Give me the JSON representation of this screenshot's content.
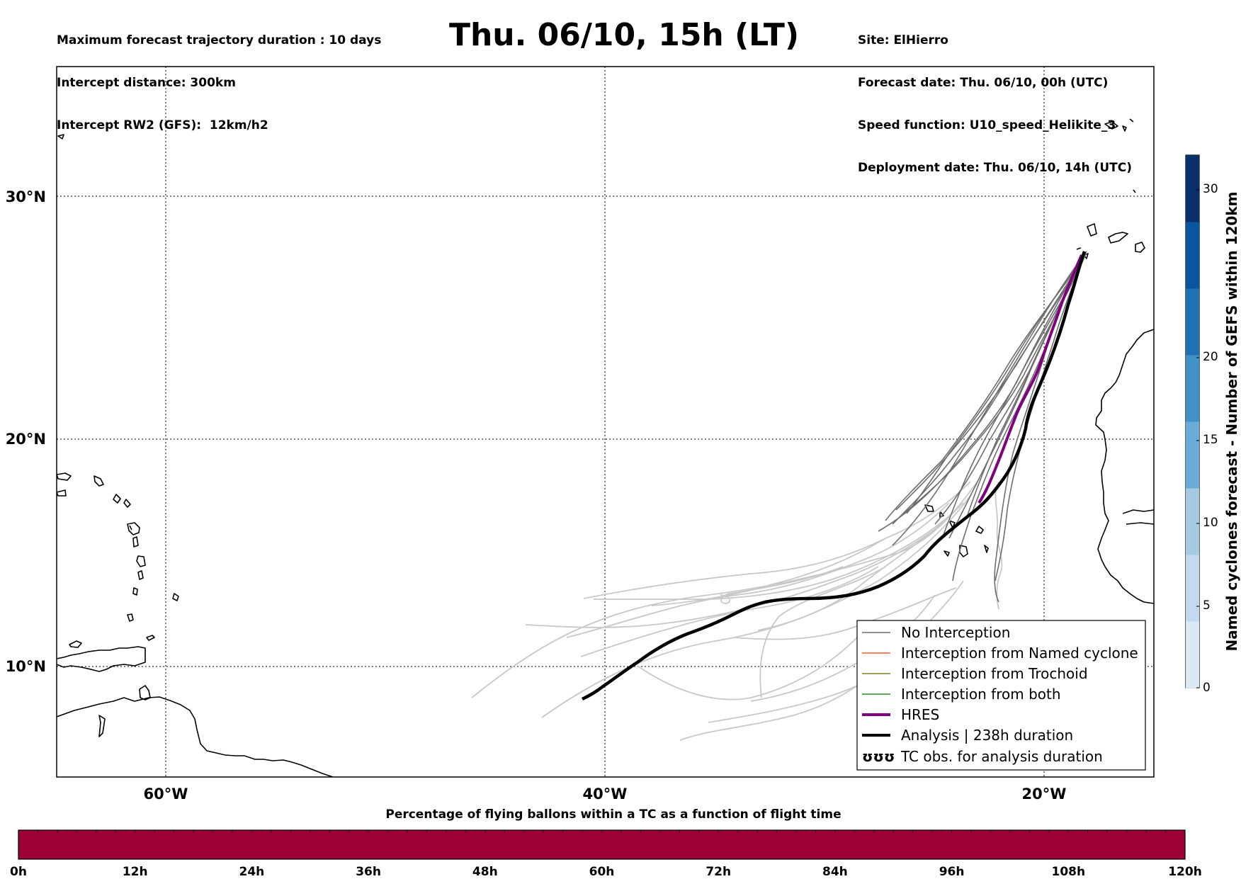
{
  "header": {
    "left_lines": [
      "Maximum forecast trajectory duration : 10 days",
      "Intercept distance: 300km",
      "Intercept RW2 (GFS):  12km/h2"
    ],
    "title": "Thu. 06/10, 15h (LT)",
    "right_lines": [
      "Site: ElHierro",
      "Forecast date: Thu. 06/10, 00h (UTC)",
      "Speed function: U10_speed_Helikite_3",
      "Deployment date: Thu. 06/10, 14h (UTC)"
    ]
  },
  "map": {
    "lat_labels": [
      "30°N",
      "20°N",
      "10°N"
    ],
    "lon_labels": [
      "60°W",
      "40°W",
      "20°W"
    ],
    "colors": {
      "no_interception": "#6e6e6e",
      "light_tracks": "#c8c8c8",
      "named_cyclone": "#ff5a1e",
      "trochoid": "#808020",
      "both": "#228b22",
      "hres": "#800080",
      "analysis": "#000000"
    }
  },
  "legend": {
    "items": [
      {
        "label": "No Interception",
        "icon": "thin-grey-line"
      },
      {
        "label": "Interception from Named cyclone",
        "icon": "thin-orange-line"
      },
      {
        "label": "Interception from Trochoid",
        "icon": "thin-olive-line"
      },
      {
        "label": "Interception from both",
        "icon": "thin-green-line"
      },
      {
        "label": "HRES",
        "icon": "thick-purple-line"
      },
      {
        "label": "Analysis | 238h duration",
        "icon": "thick-black-line"
      },
      {
        "label": "TC obs. for analysis duration",
        "icon": "cyclone-symbols",
        "symbol": "ʊʊʊ"
      }
    ]
  },
  "colorbar": {
    "title": "Named cyclones forecast - Number of GEFS within 120km",
    "ticks": [
      "0",
      "5",
      "10",
      "15",
      "20",
      "30"
    ],
    "colors": [
      "#dbe8f5",
      "#c3d9ee",
      "#a6c9e4",
      "#6aacd7",
      "#4291c6",
      "#2171b5",
      "#0b559f",
      "#08306b"
    ]
  },
  "bottom_bar": {
    "title": "Percentage of flying ballons within a TC as a function of flight time",
    "ticks": [
      "0h",
      "12h",
      "24h",
      "36h",
      "48h",
      "60h",
      "72h",
      "84h",
      "96h",
      "108h",
      "120h"
    ],
    "fill_color": "#9e0038"
  }
}
